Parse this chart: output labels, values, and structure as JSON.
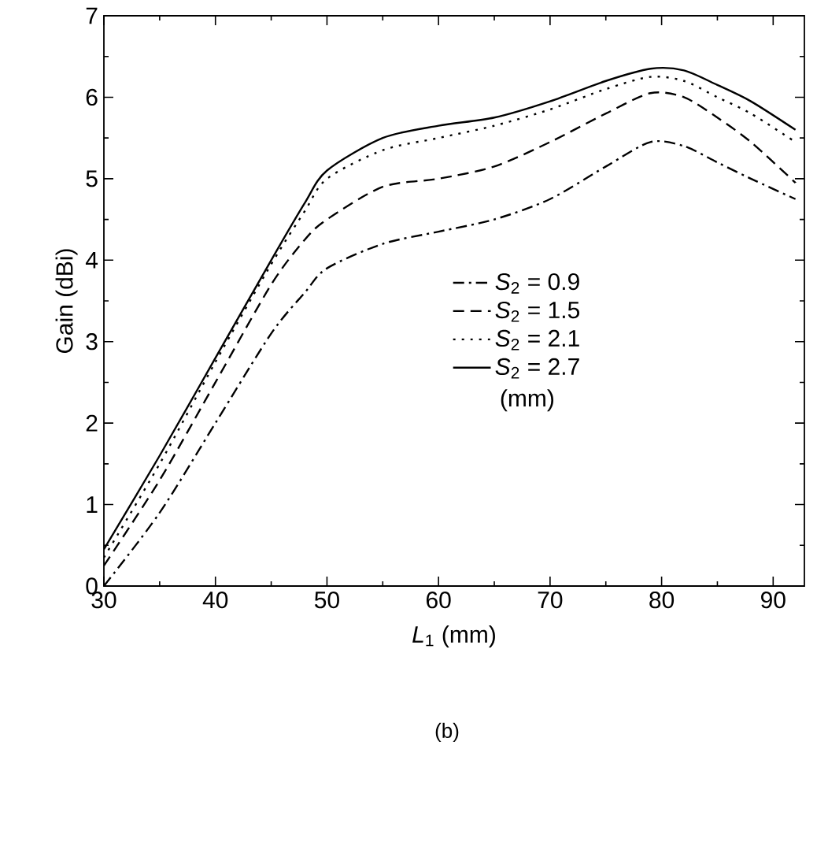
{
  "chart_data": {
    "type": "line",
    "xlabel": "*L*$_{1}$ (mm)",
    "ylabel": "Gain (dBi)",
    "legend_title": "(mm)",
    "annotations": [
      "(b)"
    ],
    "xlim": [
      30,
      92.8
    ],
    "ylim": [
      0,
      7
    ],
    "xticks": [
      30,
      40,
      50,
      60,
      70,
      80,
      90
    ],
    "yticks": [
      0,
      1,
      2,
      3,
      4,
      5,
      6,
      7
    ],
    "legend": "right",
    "marker": "none",
    "x": [
      30,
      35,
      40,
      45,
      48,
      50,
      55,
      60,
      65,
      70,
      75,
      79,
      82,
      85,
      88,
      92
    ],
    "series": [
      {
        "name": "*S*$_{2}$ = 0.9",
        "color": "#000000",
        "line_style": "dashdot",
        "values": [
          0.0,
          0.9,
          2.0,
          3.1,
          3.6,
          3.9,
          4.2,
          4.35,
          4.5,
          4.75,
          5.15,
          5.45,
          5.4,
          5.2,
          5.0,
          4.75
        ]
      },
      {
        "name": "*S*$_{2}$ = 1.5",
        "color": "#000000",
        "line_style": "dashed",
        "values": [
          0.25,
          1.3,
          2.5,
          3.7,
          4.25,
          4.5,
          4.9,
          5.0,
          5.15,
          5.45,
          5.8,
          6.05,
          6.0,
          5.75,
          5.45,
          4.95
        ]
      },
      {
        "name": "*S*$_{2}$ = 2.1",
        "color": "#000000",
        "line_style": "dotted",
        "values": [
          0.35,
          1.5,
          2.75,
          3.95,
          4.6,
          5.0,
          5.35,
          5.5,
          5.65,
          5.85,
          6.1,
          6.25,
          6.2,
          6.0,
          5.8,
          5.45
        ]
      },
      {
        "name": "*S*$_{2}$ = 2.7",
        "color": "#000000",
        "line_style": "solid",
        "values": [
          0.45,
          1.6,
          2.8,
          4.0,
          4.7,
          5.1,
          5.5,
          5.65,
          5.75,
          5.95,
          6.2,
          6.35,
          6.33,
          6.15,
          5.95,
          5.6
        ]
      }
    ]
  }
}
